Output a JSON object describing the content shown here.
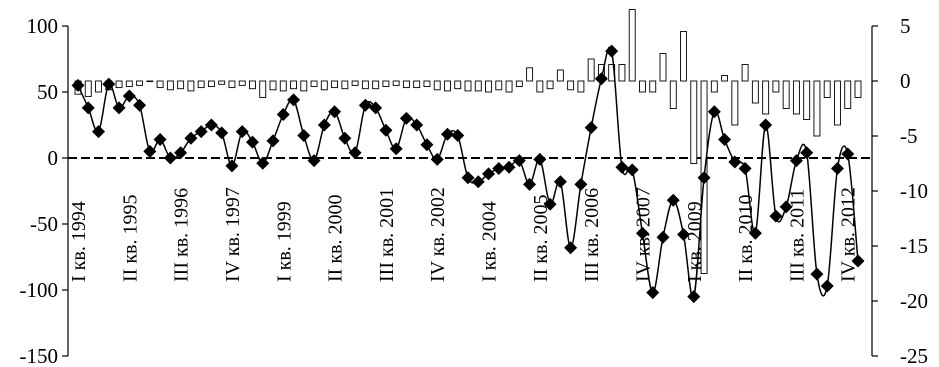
{
  "chart_data": {
    "type": "bar+line",
    "title": "",
    "left_axis": {
      "ylim": [
        -150,
        100
      ],
      "ticks": [
        100,
        50,
        0,
        -50,
        -100,
        -150
      ]
    },
    "right_axis": {
      "ylim": [
        -25,
        5
      ],
      "ticks": [
        5,
        0,
        -5,
        -10,
        -15,
        -20,
        -25
      ]
    },
    "category_labels": [
      {
        "text": "I кв. 1994",
        "index": 0
      },
      {
        "text": "II кв. 1995",
        "index": 5
      },
      {
        "text": "III кв. 1996",
        "index": 10
      },
      {
        "text": "IV кв. 1997",
        "index": 15
      },
      {
        "text": "I кв. 1999",
        "index": 20
      },
      {
        "text": "II кв. 2000",
        "index": 25
      },
      {
        "text": "III кв. 2001",
        "index": 30
      },
      {
        "text": "IV кв. 2002",
        "index": 35
      },
      {
        "text": "I кв. 2004",
        "index": 40
      },
      {
        "text": "II кв. 2005",
        "index": 45
      },
      {
        "text": "III кв. 2006",
        "index": 50
      },
      {
        "text": "IV кв. 2007",
        "index": 55
      },
      {
        "text": "I кв. 2009",
        "index": 60
      },
      {
        "text": "II кв. 2010",
        "index": 65
      },
      {
        "text": "III кв. 2011",
        "index": 70
      },
      {
        "text": "IV кв. 2012",
        "index": 75
      }
    ],
    "n_points": 77,
    "series": [
      {
        "type": "line",
        "axis": "left",
        "marker": "diamond",
        "values": [
          55,
          38,
          20,
          56,
          38,
          47,
          40,
          5,
          14,
          0,
          4,
          15,
          20,
          25,
          19,
          -6,
          20,
          12,
          -4,
          13,
          33,
          44,
          17,
          -2,
          25,
          35,
          15,
          4,
          40,
          38,
          21,
          7,
          30,
          25,
          10,
          -1,
          18,
          17,
          -15,
          -18,
          -12,
          -8,
          -7,
          -2,
          -20,
          -1,
          -35,
          -18,
          -68,
          -20,
          23,
          60,
          81,
          -7,
          -9,
          -57,
          -102,
          -60,
          -32,
          -58,
          -105,
          -15,
          35,
          14,
          -3,
          -8,
          -57,
          25,
          -44,
          -37,
          -2,
          4,
          -88,
          -97,
          -8,
          3,
          -78
        ]
      },
      {
        "type": "bar",
        "axis": "right",
        "values": [
          -1.2,
          -1.4,
          -1.0,
          -0.8,
          -0.6,
          -0.5,
          -0.4,
          0,
          -0.6,
          -0.8,
          -0.7,
          -0.9,
          -0.6,
          -0.5,
          -0.3,
          -0.6,
          -0.4,
          -0.7,
          -1.5,
          -0.8,
          -0.9,
          -0.7,
          -0.9,
          -0.5,
          -0.8,
          -0.6,
          -0.7,
          -0.4,
          -0.7,
          -0.7,
          -0.5,
          -0.4,
          -0.6,
          -0.6,
          -0.5,
          -0.8,
          -0.9,
          -0.7,
          -0.9,
          -0.9,
          -1.0,
          -0.8,
          -1.0,
          -0.5,
          1.2,
          -1.0,
          -0.7,
          1.0,
          -0.8,
          -1.0,
          2.0,
          1.5,
          1.5,
          1.5,
          6.5,
          -1.0,
          -1.0,
          2.5,
          -2.5,
          4.5,
          -7.5,
          -17.5,
          -1.0,
          0.5,
          -4.0,
          1.5,
          -2.0,
          -3.0,
          -1.0,
          -2.5,
          -3.0,
          -3.5,
          -5.0,
          -1.5,
          -4.0,
          -2.5,
          -1.5
        ]
      }
    ]
  }
}
